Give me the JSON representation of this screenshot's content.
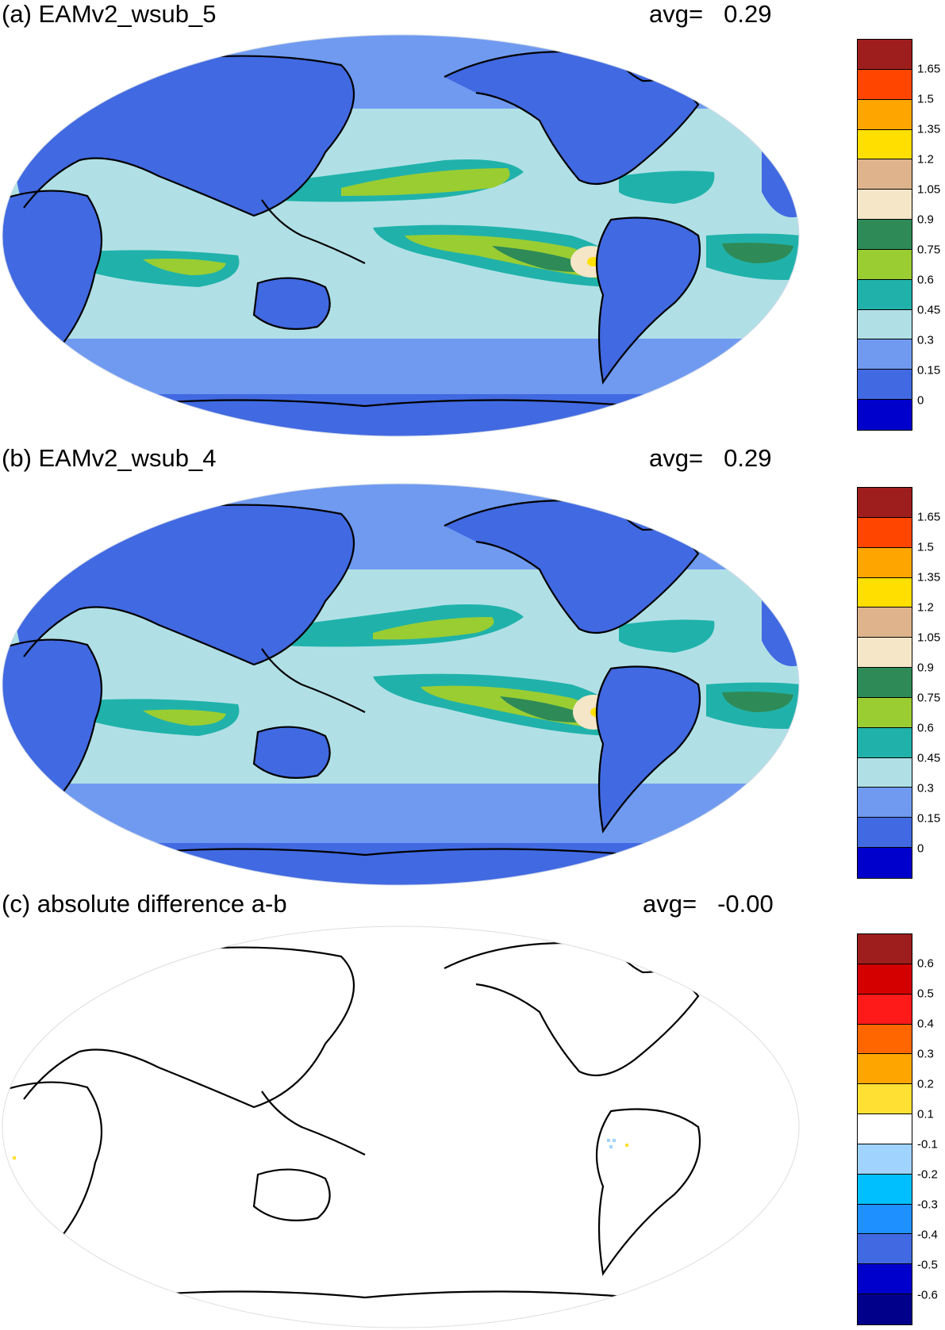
{
  "panels": [
    {
      "title": "(a) EAMv2_wsub_5",
      "avg_label": "avg=",
      "avg_value": "0.29",
      "colorbar": {
        "colors": [
          "#9e1e1e",
          "#ff4500",
          "#ffa500",
          "#ffdf00",
          "#dfb48c",
          "#f5e6c8",
          "#2e8b57",
          "#9acd32",
          "#20b2aa",
          "#b0e0e6",
          "#6f9af0",
          "#4169e1",
          "#0000cd"
        ],
        "labels": [
          "1.65",
          "1.5",
          "1.35",
          "1.2",
          "1.05",
          "0.9",
          "0.75",
          "0.6",
          "0.45",
          "0.3",
          "0.15",
          "0"
        ]
      }
    },
    {
      "title": "(b) EAMv2_wsub_4",
      "avg_label": "avg=",
      "avg_value": "0.29",
      "colorbar": {
        "colors": [
          "#9e1e1e",
          "#ff4500",
          "#ffa500",
          "#ffdf00",
          "#dfb48c",
          "#f5e6c8",
          "#2e8b57",
          "#9acd32",
          "#20b2aa",
          "#b0e0e6",
          "#6f9af0",
          "#4169e1",
          "#0000cd"
        ],
        "labels": [
          "1.65",
          "1.5",
          "1.35",
          "1.2",
          "1.05",
          "0.9",
          "0.75",
          "0.6",
          "0.45",
          "0.3",
          "0.15",
          "0"
        ]
      }
    },
    {
      "title": "(c) absolute difference a-b",
      "avg_label": "avg=",
      "avg_value": "-0.00",
      "colorbar": {
        "colors": [
          "#9e1e1e",
          "#d40000",
          "#ff1a1a",
          "#ff6600",
          "#ffa500",
          "#ffe033",
          "#ffffff",
          "#a0d4ff",
          "#00bfff",
          "#1e90ff",
          "#4169e1",
          "#0000cd",
          "#00008b"
        ],
        "labels": [
          "0.6",
          "0.5",
          "0.4",
          "0.3",
          "0.2",
          "0.1",
          "-0.1",
          "-0.2",
          "-0.3",
          "-0.4",
          "-0.5",
          "-0.6"
        ]
      }
    }
  ],
  "colors": {
    "ocean_base": "#b0e0e6",
    "land": "#4169e1",
    "midlat": "#6f9af0",
    "itcz": "#20b2aa",
    "band": "#9acd32",
    "core": "#2e8b57",
    "coastline": "#000000"
  }
}
